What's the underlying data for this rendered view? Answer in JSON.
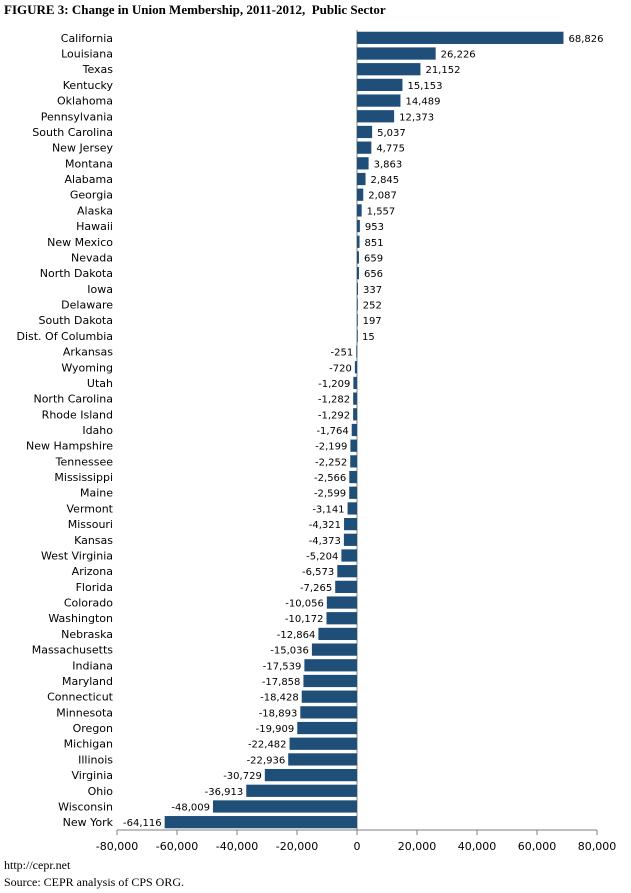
{
  "title": "FIGURE 3: Change in Union Membership, 2011-2012,  Public Sector",
  "footer": {
    "url": "http://cepr.net",
    "source": "Source: CEPR analysis of CPS ORG."
  },
  "colors": {
    "bar": "#1F4E79",
    "axis": "#7f7f7f"
  },
  "chart_data": {
    "type": "bar",
    "orientation": "horizontal",
    "categories": [
      "California",
      "Louisiana",
      "Texas",
      "Kentucky",
      "Oklahoma",
      "Pennsylvania",
      "South Carolina",
      "New Jersey",
      "Montana",
      "Alabama",
      "Georgia",
      "Alaska",
      "Hawaii",
      "New Mexico",
      "Nevada",
      "North Dakota",
      "Iowa",
      "Delaware",
      "South Dakota",
      "Dist. Of Columbia",
      "Arkansas",
      "Wyoming",
      "Utah",
      "North Carolina",
      "Rhode Island",
      "Idaho",
      "New Hampshire",
      "Tennessee",
      "Mississippi",
      "Maine",
      "Vermont",
      "Missouri",
      "Kansas",
      "West Virginia",
      "Arizona",
      "Florida",
      "Colorado",
      "Washington",
      "Nebraska",
      "Massachusetts",
      "Indiana",
      "Maryland",
      "Connecticut",
      "Minnesota",
      "Oregon",
      "Michigan",
      "Illinois",
      "Virginia",
      "Ohio",
      "Wisconsin",
      "New York"
    ],
    "values": [
      68826,
      26226,
      21152,
      15153,
      14489,
      12373,
      5037,
      4775,
      3863,
      2845,
      2087,
      1557,
      953,
      851,
      659,
      656,
      337,
      252,
      197,
      15,
      -251,
      -720,
      -1209,
      -1282,
      -1292,
      -1764,
      -2199,
      -2252,
      -2566,
      -2599,
      -3141,
      -4321,
      -4373,
      -5204,
      -6573,
      -7265,
      -10056,
      -10172,
      -12864,
      -15036,
      -17539,
      -17858,
      -18428,
      -18893,
      -19909,
      -22482,
      -22936,
      -30729,
      -36913,
      -48009,
      -64116
    ],
    "value_labels": [
      "68,826",
      "26,226",
      "21,152",
      "15,153",
      "14,489",
      "12,373",
      "5,037",
      "4,775",
      "3,863",
      "2,845",
      "2,087",
      "1,557",
      "953",
      "851",
      "659",
      "656",
      "337",
      "252",
      "197",
      "15",
      "-251",
      "-720",
      "-1,209",
      "-1,282",
      "-1,292",
      "-1,764",
      "-2,199",
      "-2,252",
      "-2,566",
      "-2,599",
      "-3,141",
      "-4,321",
      "-4,373",
      "-5,204",
      "-6,573",
      "-7,265",
      "-10,056",
      "-10,172",
      "-12,864",
      "-15,036",
      "-17,539",
      "-17,858",
      "-18,428",
      "-18,893",
      "-19,909",
      "-22,482",
      "-22,936",
      "-30,729",
      "-36,913",
      "-48,009",
      "-64,116"
    ],
    "xlim": [
      -80000,
      80000
    ],
    "xticks": [
      -80000,
      -60000,
      -40000,
      -20000,
      0,
      20000,
      40000,
      60000,
      80000
    ],
    "xtick_labels": [
      "-80,000",
      "-60,000",
      "-40,000",
      "-20,000",
      "0",
      "20,000",
      "40,000",
      "60,000",
      "80,000"
    ],
    "grid": false,
    "legend": "none"
  }
}
